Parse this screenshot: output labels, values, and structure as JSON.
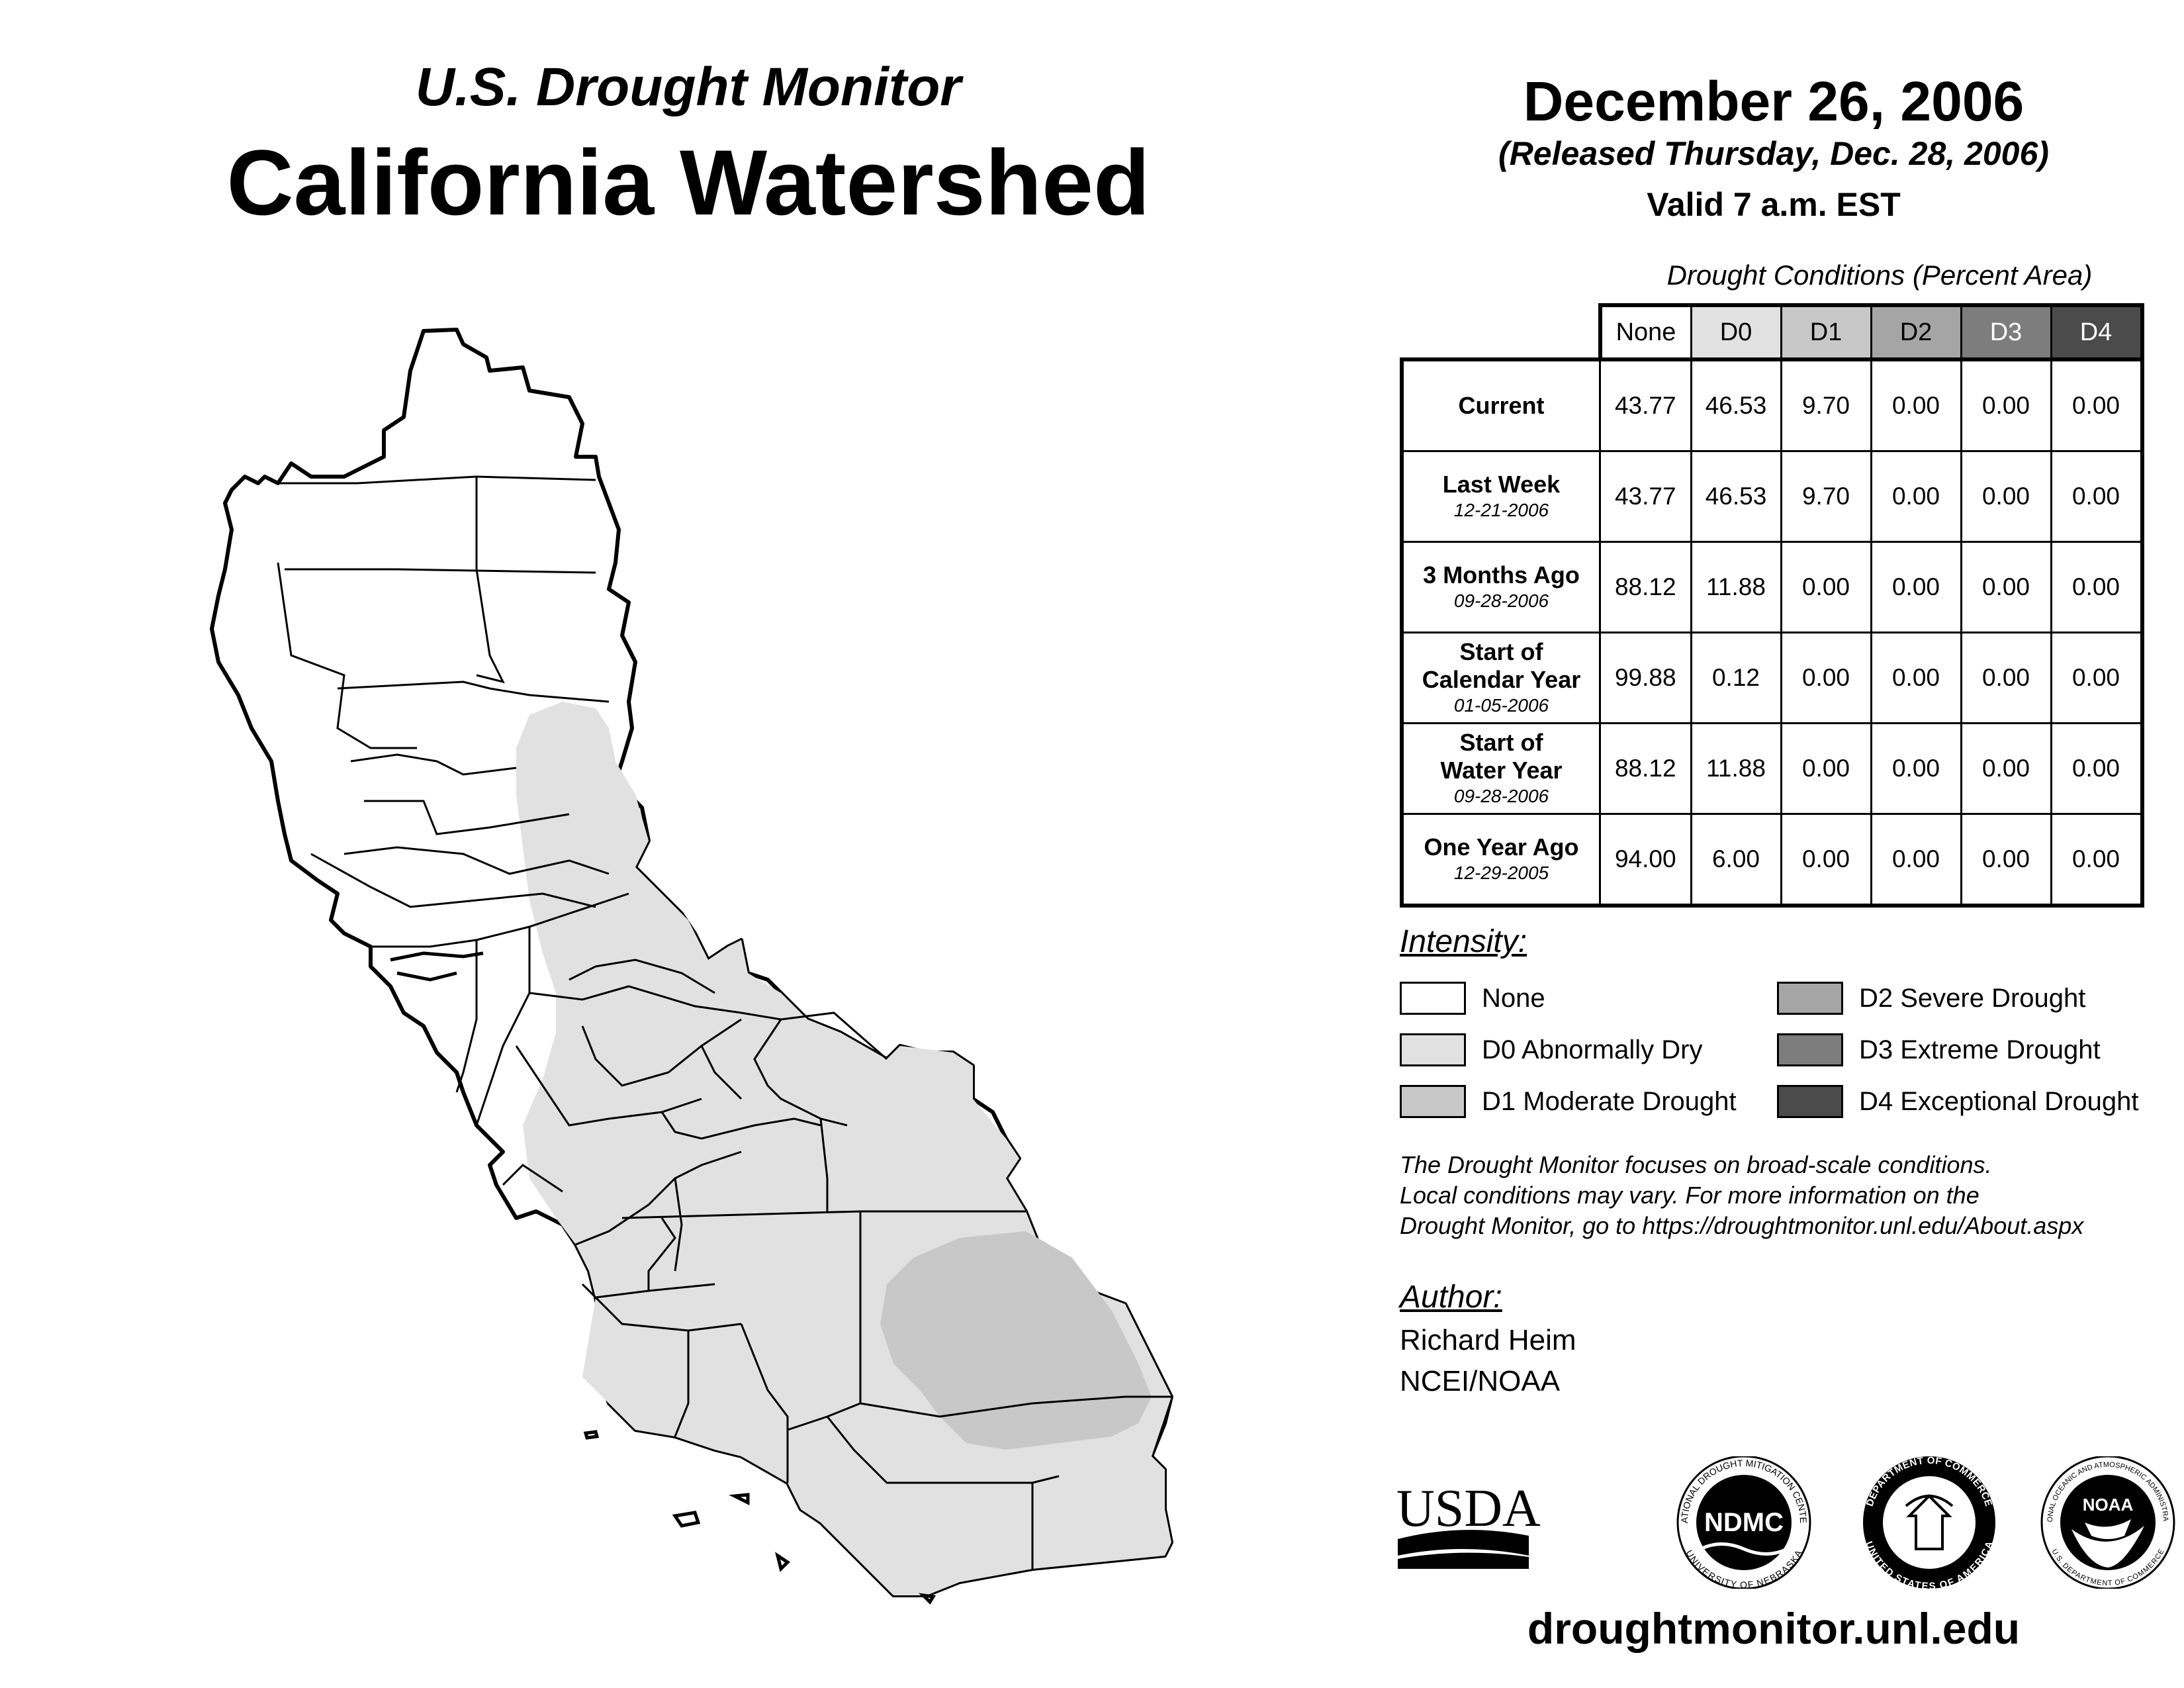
{
  "header": {
    "title_line1": "U.S. Drought Monitor",
    "title_line2": "California Watershed",
    "date": "December 26, 2006",
    "released": "(Released Thursday, Dec. 28, 2006)",
    "valid": "Valid 7 a.m. EST"
  },
  "table": {
    "caption": "Drought Conditions (Percent Area)",
    "columns": [
      "None",
      "D0",
      "D1",
      "D2",
      "D3",
      "D4"
    ],
    "rows": [
      {
        "label": "Current",
        "label2": "",
        "date": "",
        "values": [
          "43.77",
          "46.53",
          "9.70",
          "0.00",
          "0.00",
          "0.00"
        ]
      },
      {
        "label": "Last Week",
        "label2": "",
        "date": "12-21-2006",
        "values": [
          "43.77",
          "46.53",
          "9.70",
          "0.00",
          "0.00",
          "0.00"
        ]
      },
      {
        "label": "3 Months Ago",
        "label2": "",
        "date": "09-28-2006",
        "values": [
          "88.12",
          "11.88",
          "0.00",
          "0.00",
          "0.00",
          "0.00"
        ]
      },
      {
        "label": "Start of",
        "label2": "Calendar Year",
        "date": "01-05-2006",
        "values": [
          "99.88",
          "0.12",
          "0.00",
          "0.00",
          "0.00",
          "0.00"
        ]
      },
      {
        "label": "Start of",
        "label2": "Water Year",
        "date": "09-28-2006",
        "values": [
          "88.12",
          "11.88",
          "0.00",
          "0.00",
          "0.00",
          "0.00"
        ]
      },
      {
        "label": "One Year Ago",
        "label2": "",
        "date": "12-29-2005",
        "values": [
          "94.00",
          "6.00",
          "0.00",
          "0.00",
          "0.00",
          "0.00"
        ]
      }
    ]
  },
  "legend": {
    "heading": "Intensity:",
    "items": [
      {
        "label": "None",
        "color": "#ffffff"
      },
      {
        "label": "D0 Abnormally Dry",
        "color": "#e1e1e1"
      },
      {
        "label": "D1 Moderate Drought",
        "color": "#c8c8c8"
      },
      {
        "label": "D2 Severe Drought",
        "color": "#a5a5a5"
      },
      {
        "label": "D3 Extreme Drought",
        "color": "#7d7d7d"
      },
      {
        "label": "D4 Exceptional Drought",
        "color": "#4b4b4b"
      }
    ]
  },
  "note": {
    "line1": "The Drought Monitor focuses on broad-scale conditions.",
    "line2": "Local conditions may vary. For more information on the",
    "line3": "Drought Monitor, go to https://droughtmonitor.unl.edu/About.aspx"
  },
  "author": {
    "heading": "Author:",
    "name": "Richard Heim",
    "org": "NCEI/NOAA"
  },
  "logos": {
    "usda": "USDA",
    "ndmc": "NDMC",
    "ndmc_ring_top": "NATIONAL DROUGHT MITIGATION CENTER",
    "ndmc_ring_bottom": "UNIVERSITY OF NEBRASKA",
    "doc_ring_top": "DEPARTMENT OF COMMERCE",
    "doc_ring_bottom": "UNITED STATES OF AMERICA",
    "noaa": "NOAA",
    "noaa_ring_top": "NATIONAL OCEANIC AND ATMOSPHERIC ADMINISTRATION",
    "noaa_ring_bottom": "U.S. DEPARTMENT OF COMMERCE"
  },
  "footer": {
    "url": "droughtmonitor.unl.edu"
  }
}
